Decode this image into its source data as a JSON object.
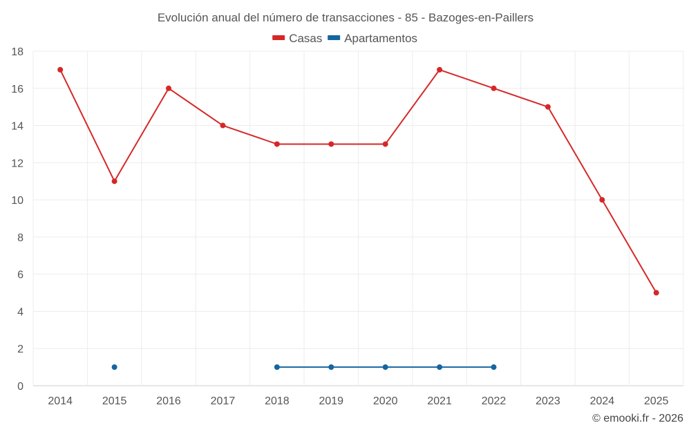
{
  "chart_data": {
    "type": "line",
    "title": "Evolución anual del número de transacciones - 85 - Bazoges-en-Paillers",
    "categories": [
      "2014",
      "2015",
      "2016",
      "2017",
      "2018",
      "2019",
      "2020",
      "2021",
      "2022",
      "2023",
      "2024",
      "2025"
    ],
    "series": [
      {
        "name": "Casas",
        "color": "#d62728",
        "values": [
          17,
          11,
          16,
          14,
          13,
          13,
          13,
          17,
          16,
          15,
          10,
          5
        ]
      },
      {
        "name": "Apartamentos",
        "color": "#1565a0",
        "values": [
          null,
          1,
          null,
          null,
          1,
          1,
          1,
          1,
          1,
          null,
          null,
          null
        ]
      }
    ],
    "ylim": [
      0,
      18
    ],
    "yticks": [
      "0",
      "2",
      "4",
      "6",
      "8",
      "10",
      "12",
      "14",
      "16",
      "18"
    ],
    "xlabel": "",
    "ylabel": "",
    "grid": true,
    "legend_position": "top-center"
  },
  "credit": "© emooki.fr - 2026"
}
